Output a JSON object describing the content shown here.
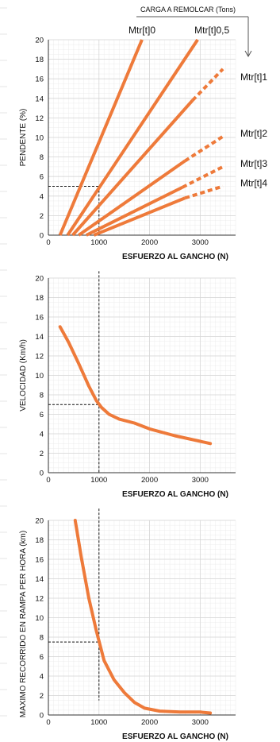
{
  "colors": {
    "curve": "#EE7A3A",
    "grid_minor": "#ECECEC",
    "grid_major": "#D6D6D6",
    "axis": "#333333",
    "text": "#111111",
    "guide": "#111111",
    "left_edge_lines": "#E6E6E6"
  },
  "header": {
    "load_label": "CARGA A REMOLCAR (Tons)"
  },
  "chart_data": [
    {
      "id": "pendiente",
      "type": "line",
      "xlabel": "ESFUERZO AL GANCHO (N)",
      "ylabel": "PENDENTE (%)",
      "xlim": [
        0,
        3700
      ],
      "ylim": [
        0,
        20
      ],
      "x_ticks": [
        0,
        1000,
        2000,
        3000
      ],
      "y_ticks": [
        0,
        2,
        4,
        6,
        8,
        10,
        12,
        14,
        16,
        18,
        20
      ],
      "grid": true,
      "series": [
        {
          "name": "Mtr[t]0",
          "label_pos": "top",
          "solid": [
            [
              230,
              0
            ],
            [
              1850,
              20
            ]
          ],
          "dashed": []
        },
        {
          "name": "Mtr[t]0,5",
          "label_pos": "top",
          "solid": [
            [
              380,
              0
            ],
            [
              2950,
              20
            ]
          ],
          "dashed": []
        },
        {
          "name": "Mtr[t]1",
          "label_pos": "right",
          "solid": [
            [
              480,
              0
            ],
            [
              2850,
              13.8
            ]
          ],
          "dashed": [
            [
              2850,
              13.8
            ],
            [
              3450,
              17
            ]
          ]
        },
        {
          "name": "Mtr[t]2",
          "label_pos": "right",
          "solid": [
            [
              600,
              0
            ],
            [
              2700,
              7.6
            ]
          ],
          "dashed": [
            [
              2700,
              7.6
            ],
            [
              3450,
              10.1
            ]
          ]
        },
        {
          "name": "Mtr[t]3",
          "label_pos": "right",
          "solid": [
            [
              750,
              0
            ],
            [
              2650,
              4.9
            ]
          ],
          "dashed": [
            [
              2650,
              4.9
            ],
            [
              3450,
              7
            ]
          ]
        },
        {
          "name": "Mtr[t]4",
          "label_pos": "right",
          "solid": [
            [
              900,
              0
            ],
            [
              2700,
              3.8
            ]
          ],
          "dashed": [
            [
              2700,
              3.8
            ],
            [
              3450,
              5
            ]
          ]
        }
      ],
      "guide_lines": [
        {
          "from": [
            0,
            5
          ],
          "to": [
            1000,
            5
          ]
        },
        {
          "from": [
            1000,
            5
          ],
          "to": [
            1000,
            0
          ]
        }
      ]
    },
    {
      "id": "velocidad",
      "type": "line",
      "xlabel": "ESFUERZO AL GANCHO (N)",
      "ylabel": "VELOCIDAD (Km/h)",
      "xlim": [
        0,
        3700
      ],
      "ylim": [
        0,
        20
      ],
      "x_ticks": [
        0,
        1000,
        2000,
        3000
      ],
      "y_ticks": [
        0,
        2,
        4,
        6,
        8,
        10,
        12,
        14,
        16,
        18,
        20
      ],
      "grid": true,
      "series": [
        {
          "points": [
            [
              230,
              15
            ],
            [
              400,
              13.4
            ],
            [
              600,
              11.2
            ],
            [
              800,
              8.9
            ],
            [
              950,
              7.4
            ],
            [
              1050,
              6.7
            ],
            [
              1200,
              6.0
            ],
            [
              1400,
              5.5
            ],
            [
              1700,
              5.1
            ],
            [
              2000,
              4.5
            ],
            [
              2500,
              3.8
            ],
            [
              3200,
              3.0
            ]
          ]
        }
      ],
      "guide_lines": [
        {
          "from": [
            0,
            7
          ],
          "to": [
            1000,
            7
          ]
        },
        {
          "from": [
            1000,
            20.7
          ],
          "to": [
            1000,
            0
          ]
        }
      ]
    },
    {
      "id": "recorrido",
      "type": "line",
      "xlabel": "ESFUERZO AL GANCHO (N)",
      "ylabel": "MAXIMO RECORRIDO EN RAMPA PER HORA  (km)",
      "xlim": [
        0,
        3700
      ],
      "ylim": [
        0,
        20
      ],
      "x_ticks": [
        0,
        1000,
        2000,
        3000
      ],
      "y_ticks": [
        0,
        2,
        4,
        6,
        8,
        10,
        12,
        14,
        16,
        18,
        20
      ],
      "grid": true,
      "series": [
        {
          "points": [
            [
              530,
              20
            ],
            [
              650,
              16.2
            ],
            [
              800,
              12
            ],
            [
              950,
              8.6
            ],
            [
              1100,
              5.6
            ],
            [
              1300,
              3.6
            ],
            [
              1500,
              2.3
            ],
            [
              1700,
              1.3
            ],
            [
              1900,
              0.7
            ],
            [
              2200,
              0.4
            ],
            [
              2600,
              0.3
            ],
            [
              3000,
              0.3
            ],
            [
              3200,
              0.2
            ]
          ]
        }
      ],
      "guide_lines": [
        {
          "from": [
            0,
            7.5
          ],
          "to": [
            1000,
            7.5
          ]
        },
        {
          "from": [
            1000,
            21.2
          ],
          "to": [
            1000,
            1.5
          ]
        }
      ]
    }
  ]
}
